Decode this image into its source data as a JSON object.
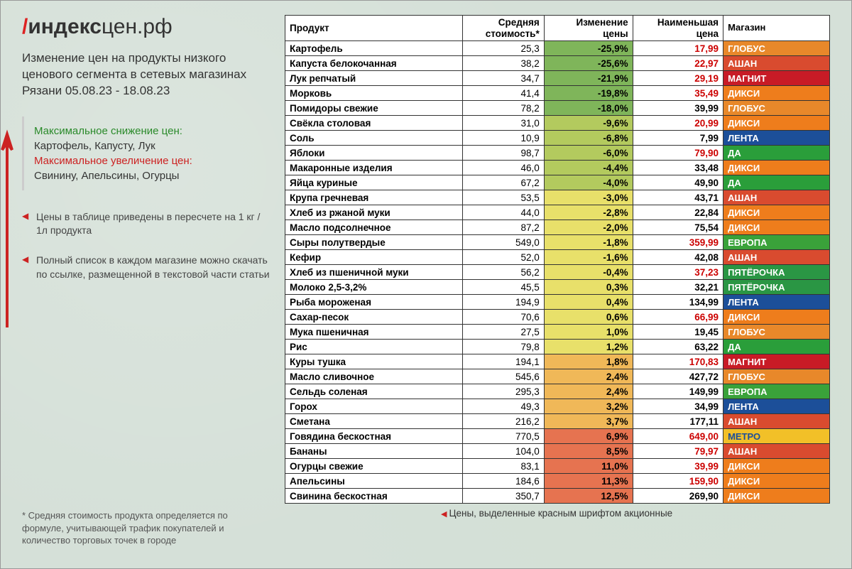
{
  "logo": {
    "prefix_char": "/",
    "text1": "индекс",
    "text2": "цен.рф"
  },
  "subtitle": "Изменение цен на продукты низкого ценового сегмента в сетевых магазинах Рязани 05.08.23 - 18.08.23",
  "highlight": {
    "decrease_label": "Максимальное снижение цен:",
    "decrease_items": "Картофель, Капусту, Лук",
    "increase_label": "Максимальное увеличение цен:",
    "increase_items": "Свинину, Апельсины, Огурцы"
  },
  "note1": "Цены в таблице приведены в пересчете на 1 кг / 1л продукта",
  "note2": "Полный список в каждом магазине можно скачать по ссылке, размещенной в текстовой части статьи",
  "footnote": "* Средняя стоимость продукта определяется по формуле, учитывающей трафик покупателей и количество торговых точек в городе",
  "table_footer": "Цены, выделенные красным шрифтом акционные",
  "headers": {
    "product": "Продукт",
    "avg": "Средняя стоимость*",
    "change": "Изменение цены",
    "min": "Наименьшая цена",
    "store": "Магазин"
  },
  "store_colors": {
    "ГЛОБУС": "#e8882a",
    "АШАН": "#d94b2f",
    "МАГНИТ": "#c81b26",
    "ДИКСИ": "#ee7d1c",
    "ЛЕНТА": "#1c4f99",
    "ДА": "#2a9e3a",
    "ЕВРОПА": "#3aa23a",
    "ПЯТЁРОЧКА": "#2a9644",
    "МЕТРО": "#f2c028"
  },
  "change_scale": {
    "strong_neg": "#7fb55a",
    "neg": "#b3ca5e",
    "flat": "#e8e06a",
    "pos": "#f0b858",
    "strong_pos": "#e67350"
  },
  "rows": [
    {
      "product": "Картофель",
      "avg": "25,3",
      "change": "-25,9%",
      "chg_bg": "strong_neg",
      "min": "17,99",
      "promo": true,
      "store": "ГЛОБУС"
    },
    {
      "product": "Капуста белокочанная",
      "avg": "38,2",
      "change": "-25,6%",
      "chg_bg": "strong_neg",
      "min": "22,97",
      "promo": true,
      "store": "АШАН"
    },
    {
      "product": "Лук репчатый",
      "avg": "34,7",
      "change": "-21,9%",
      "chg_bg": "strong_neg",
      "min": "29,19",
      "promo": true,
      "store": "МАГНИТ"
    },
    {
      "product": "Морковь",
      "avg": "41,4",
      "change": "-19,8%",
      "chg_bg": "strong_neg",
      "min": "35,49",
      "promo": true,
      "store": "ДИКСИ"
    },
    {
      "product": "Помидоры свежие",
      "avg": "78,2",
      "change": "-18,0%",
      "chg_bg": "strong_neg",
      "min": "39,99",
      "promo": false,
      "store": "ГЛОБУС"
    },
    {
      "product": "Свёкла столовая",
      "avg": "31,0",
      "change": "-9,6%",
      "chg_bg": "neg",
      "min": "20,99",
      "promo": true,
      "store": "ДИКСИ"
    },
    {
      "product": "Соль",
      "avg": "10,9",
      "change": "-6,8%",
      "chg_bg": "neg",
      "min": "7,99",
      "promo": false,
      "store": "ЛЕНТА"
    },
    {
      "product": "Яблоки",
      "avg": "98,7",
      "change": "-6,0%",
      "chg_bg": "neg",
      "min": "79,90",
      "promo": true,
      "store": "ДА"
    },
    {
      "product": "Макаронные изделия",
      "avg": "46,0",
      "change": "-4,4%",
      "chg_bg": "neg",
      "min": "33,48",
      "promo": false,
      "store": "ДИКСИ"
    },
    {
      "product": "Яйца куриные",
      "avg": "67,2",
      "change": "-4,0%",
      "chg_bg": "neg",
      "min": "49,90",
      "promo": false,
      "store": "ДА"
    },
    {
      "product": "Крупа гречневая",
      "avg": "53,5",
      "change": "-3,0%",
      "chg_bg": "flat",
      "min": "43,71",
      "promo": false,
      "store": "АШАН"
    },
    {
      "product": "Хлеб из ржаной муки",
      "avg": "44,0",
      "change": "-2,8%",
      "chg_bg": "flat",
      "min": "22,84",
      "promo": false,
      "store": "ДИКСИ"
    },
    {
      "product": "Масло подсолнечное",
      "avg": "87,2",
      "change": "-2,0%",
      "chg_bg": "flat",
      "min": "75,54",
      "promo": false,
      "store": "ДИКСИ"
    },
    {
      "product": "Сыры полутвердые",
      "avg": "549,0",
      "change": "-1,8%",
      "chg_bg": "flat",
      "min": "359,99",
      "promo": true,
      "store": "ЕВРОПА"
    },
    {
      "product": "Кефир",
      "avg": "52,0",
      "change": "-1,6%",
      "chg_bg": "flat",
      "min": "42,08",
      "promo": false,
      "store": "АШАН"
    },
    {
      "product": "Хлеб из пшеничной муки",
      "avg": "56,2",
      "change": "-0,4%",
      "chg_bg": "flat",
      "min": "37,23",
      "promo": true,
      "store": "ПЯТЁРОЧКА"
    },
    {
      "product": "Молоко 2,5-3,2%",
      "avg": "45,5",
      "change": "0,3%",
      "chg_bg": "flat",
      "min": "32,21",
      "promo": false,
      "store": "ПЯТЁРОЧКА"
    },
    {
      "product": "Рыба мороженая",
      "avg": "194,9",
      "change": "0,4%",
      "chg_bg": "flat",
      "min": "134,99",
      "promo": false,
      "store": "ЛЕНТА"
    },
    {
      "product": "Сахар-песок",
      "avg": "70,6",
      "change": "0,6%",
      "chg_bg": "flat",
      "min": "66,99",
      "promo": true,
      "store": "ДИКСИ"
    },
    {
      "product": "Мука пшеничная",
      "avg": "27,5",
      "change": "1,0%",
      "chg_bg": "flat",
      "min": "19,45",
      "promo": false,
      "store": "ГЛОБУС"
    },
    {
      "product": "Рис",
      "avg": "79,8",
      "change": "1,2%",
      "chg_bg": "flat",
      "min": "63,22",
      "promo": false,
      "store": "ДА"
    },
    {
      "product": "Куры тушка",
      "avg": "194,1",
      "change": "1,8%",
      "chg_bg": "pos",
      "min": "170,83",
      "promo": true,
      "store": "МАГНИТ"
    },
    {
      "product": "Масло сливочное",
      "avg": "545,6",
      "change": "2,4%",
      "chg_bg": "pos",
      "min": "427,72",
      "promo": false,
      "store": "ГЛОБУС"
    },
    {
      "product": "Сельдь соленая",
      "avg": "295,3",
      "change": "2,4%",
      "chg_bg": "pos",
      "min": "149,99",
      "promo": false,
      "store": "ЕВРОПА"
    },
    {
      "product": "Горох",
      "avg": "49,3",
      "change": "3,2%",
      "chg_bg": "pos",
      "min": "34,99",
      "promo": false,
      "store": "ЛЕНТА"
    },
    {
      "product": "Сметана",
      "avg": "216,2",
      "change": "3,7%",
      "chg_bg": "pos",
      "min": "177,11",
      "promo": false,
      "store": "АШАН"
    },
    {
      "product": "Говядина бескостная",
      "avg": "770,5",
      "change": "6,9%",
      "chg_bg": "strong_pos",
      "min": "649,00",
      "promo": true,
      "store": "МЕТРО"
    },
    {
      "product": "Бананы",
      "avg": "104,0",
      "change": "8,5%",
      "chg_bg": "strong_pos",
      "min": "79,97",
      "promo": true,
      "store": "АШАН"
    },
    {
      "product": "Огурцы свежие",
      "avg": "83,1",
      "change": "11,0%",
      "chg_bg": "strong_pos",
      "min": "39,99",
      "promo": true,
      "store": "ДИКСИ"
    },
    {
      "product": "Апельсины",
      "avg": "184,6",
      "change": "11,3%",
      "chg_bg": "strong_pos",
      "min": "159,90",
      "promo": true,
      "store": "ДИКСИ"
    },
    {
      "product": "Свинина бескостная",
      "avg": "350,7",
      "change": "12,5%",
      "chg_bg": "strong_pos",
      "min": "269,90",
      "promo": false,
      "store": "ДИКСИ"
    }
  ]
}
